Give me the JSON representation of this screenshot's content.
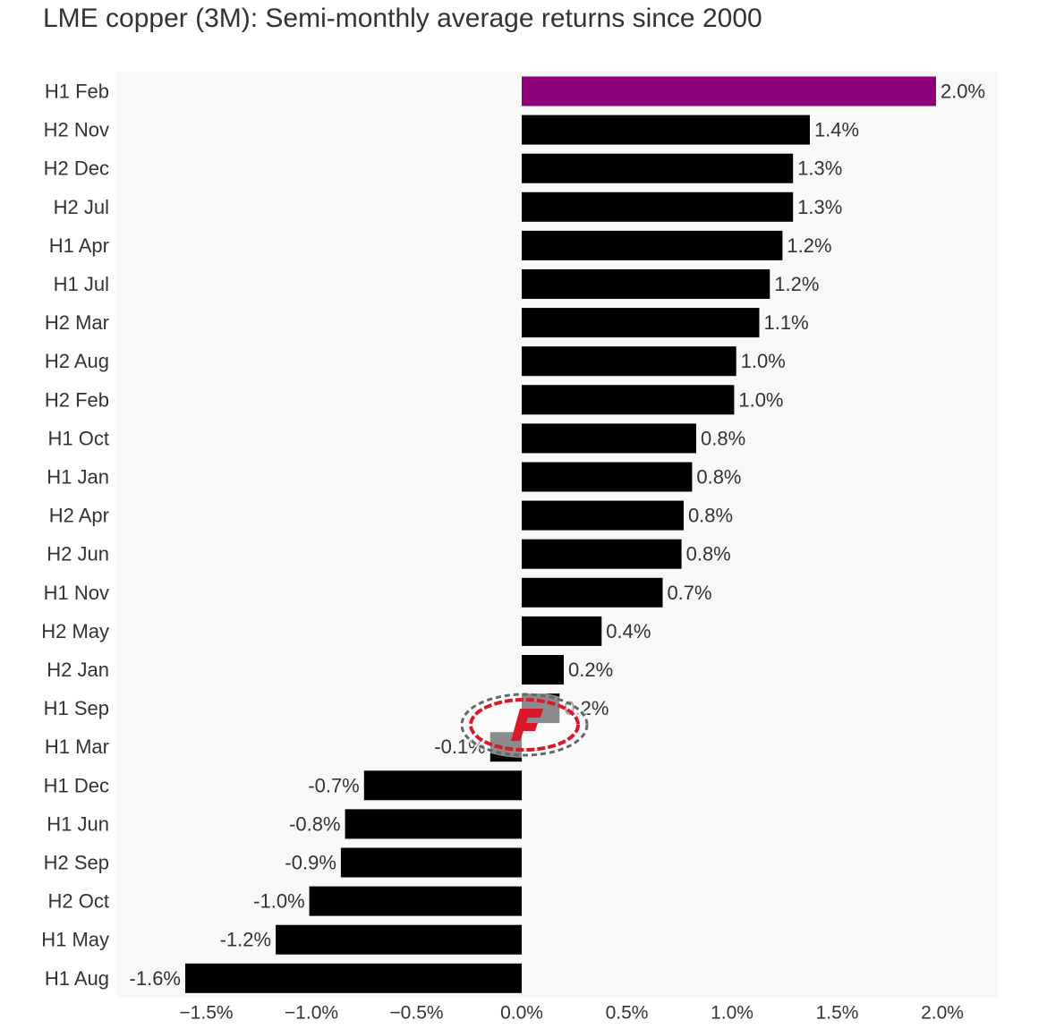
{
  "title": "LME copper (3M): Semi-monthly average returns since 2000",
  "colors": {
    "highlight": "#8e0077",
    "bar": "#000000",
    "text": "#333333",
    "background": "#f8f8f8"
  },
  "watermark": {
    "name": "f-logo-icon"
  },
  "chart_data": {
    "type": "bar",
    "orientation": "horizontal",
    "title": "LME copper (3M): Semi-monthly average returns since 2000",
    "xlabel": "",
    "ylabel": "",
    "xlim": [
      -1.7,
      2.3
    ],
    "ticks": [
      -1.5,
      -1.0,
      -0.5,
      0.0,
      0.5,
      1.0,
      1.5,
      2.0
    ],
    "tick_labels": [
      "−1.5%",
      "−1.0%",
      "−0.5%",
      "0.0%",
      "0.5%",
      "1.0%",
      "1.5%",
      "2.0%"
    ],
    "grid": false,
    "highlight_category": "H1 Feb",
    "categories": [
      "H1 Feb",
      "H2 Nov",
      "H2 Dec",
      "H2 Jul",
      "H1 Apr",
      "H1 Jul",
      "H2 Mar",
      "H2 Aug",
      "H2 Feb",
      "H1 Oct",
      "H1 Jan",
      "H2 Apr",
      "H2 Jun",
      "H1 Nov",
      "H2 May",
      "H2 Jan",
      "H1 Sep",
      "H1 Mar",
      "H1 Dec",
      "H1 Jun",
      "H2 Sep",
      "H2 Oct",
      "H1 May",
      "H1 Aug"
    ],
    "values": [
      1.97,
      1.37,
      1.29,
      1.29,
      1.24,
      1.18,
      1.13,
      1.02,
      1.01,
      0.83,
      0.81,
      0.77,
      0.76,
      0.67,
      0.38,
      0.2,
      0.18,
      -0.15,
      -0.75,
      -0.84,
      -0.86,
      -1.01,
      -1.17,
      -1.6
    ],
    "value_labels": [
      "2.0%",
      "1.4%",
      "1.3%",
      "1.3%",
      "1.2%",
      "1.2%",
      "1.1%",
      "1.0%",
      "1.0%",
      "0.8%",
      "0.8%",
      "0.8%",
      "0.8%",
      "0.7%",
      "0.4%",
      "0.2%",
      "0.2%",
      "-0.1%",
      "-0.7%",
      "-0.8%",
      "-0.9%",
      "-1.0%",
      "-1.2%",
      "-1.6%"
    ]
  }
}
